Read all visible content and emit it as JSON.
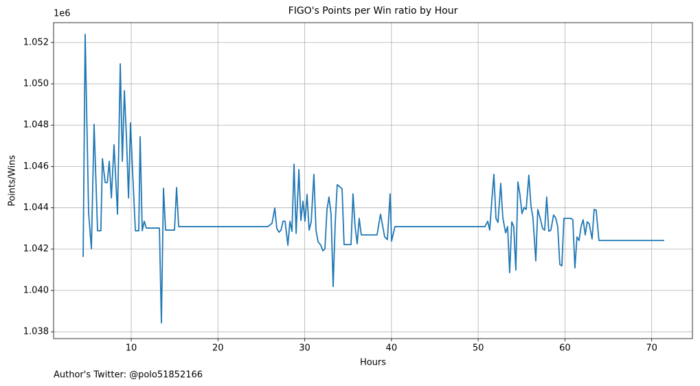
{
  "chart_data": {
    "type": "line",
    "title": "FIGO's Points per Win ratio by Hour",
    "x_label": "Hours",
    "y_label": "Points/Wins",
    "y_offset_label": "1e6",
    "footnote": "Author's Twitter: @polo51852166",
    "grid": true,
    "xlim": [
      1.05,
      74.7
    ],
    "ylim": [
      1.03767,
      1.05296
    ],
    "xticks": [
      10,
      20,
      30,
      40,
      50,
      60,
      70
    ],
    "yticks": [
      1.038,
      {
        "value": 1.04,
        "label": "1.040"
      },
      1.042,
      1.044,
      1.046,
      1.048,
      {
        "value": 1.05,
        "label": "1.050"
      },
      1.052
    ],
    "series": [
      {
        "color": "#1f77b4",
        "x": [
          4.46,
          4.69,
          5.09,
          5.41,
          5.72,
          6.12,
          6.5,
          6.68,
          7.0,
          7.24,
          7.47,
          7.71,
          8.02,
          8.42,
          8.74,
          8.98,
          9.21,
          9.45,
          9.69,
          9.92,
          10.16,
          10.48,
          10.87,
          11.03,
          11.27,
          11.5,
          11.74,
          13.25,
          13.48,
          13.72,
          13.96,
          14.99,
          15.23,
          15.47,
          25.76,
          26.23,
          26.55,
          26.79,
          27.03,
          27.27,
          27.5,
          27.74,
          28.06,
          28.3,
          28.53,
          28.77,
          29.01,
          29.33,
          29.56,
          29.8,
          30.03,
          30.27,
          30.51,
          30.75,
          31.06,
          31.3,
          31.54,
          31.86,
          32.09,
          32.33,
          32.57,
          32.8,
          33.04,
          33.28,
          33.52,
          33.75,
          34.31,
          34.54,
          35.34,
          35.57,
          35.81,
          36.05,
          36.28,
          36.52,
          38.34,
          38.74,
          39.22,
          39.53,
          39.85,
          40.01,
          40.41,
          50.78,
          51.1,
          51.33,
          51.57,
          51.81,
          52.05,
          52.28,
          52.6,
          52.84,
          53.16,
          53.39,
          53.63,
          53.87,
          54.1,
          54.34,
          54.58,
          54.81,
          55.05,
          55.29,
          55.53,
          55.84,
          56.08,
          56.32,
          56.64,
          56.87,
          57.19,
          57.43,
          57.66,
          57.9,
          58.14,
          58.38,
          58.69,
          58.93,
          59.17,
          59.41,
          59.65,
          59.88,
          60.68,
          60.91,
          61.15,
          61.39,
          61.63,
          61.86,
          62.1,
          62.34,
          62.57,
          62.81,
          63.13,
          63.37,
          63.6,
          63.92,
          71.44
        ],
        "values": [
          1.04162,
          1.0524,
          1.04375,
          1.04202,
          1.04804,
          1.04289,
          1.04289,
          1.04638,
          1.04522,
          1.04522,
          1.04625,
          1.04448,
          1.04705,
          1.04369,
          1.05097,
          1.04625,
          1.04967,
          1.04741,
          1.04448,
          1.04811,
          1.04575,
          1.04289,
          1.04289,
          1.04744,
          1.04289,
          1.04335,
          1.04302,
          1.04302,
          1.03843,
          1.04495,
          1.04292,
          1.04292,
          1.04498,
          1.04309,
          1.04309,
          1.04325,
          1.04399,
          1.04299,
          1.04282,
          1.04292,
          1.04335,
          1.04335,
          1.04219,
          1.04335,
          1.04286,
          1.04611,
          1.04276,
          1.04585,
          1.04339,
          1.04432,
          1.04335,
          1.04465,
          1.04292,
          1.04332,
          1.04562,
          1.04292,
          1.04236,
          1.04219,
          1.04192,
          1.04202,
          1.04392,
          1.04452,
          1.04369,
          1.04019,
          1.04329,
          1.04512,
          1.04492,
          1.04222,
          1.04222,
          1.04468,
          1.04309,
          1.04226,
          1.04349,
          1.04269,
          1.04269,
          1.04369,
          1.04259,
          1.04246,
          1.04468,
          1.04239,
          1.04309,
          1.04309,
          1.04335,
          1.04292,
          1.04435,
          1.04562,
          1.04349,
          1.04329,
          1.04518,
          1.04352,
          1.04279,
          1.04309,
          1.04086,
          1.04332,
          1.04309,
          1.04099,
          1.04525,
          1.04465,
          1.04372,
          1.04402,
          1.04392,
          1.04558,
          1.04412,
          1.04349,
          1.04143,
          1.04392,
          1.04342,
          1.04299,
          1.04292,
          1.04452,
          1.04286,
          1.04292,
          1.04365,
          1.04352,
          1.04309,
          1.04126,
          1.04119,
          1.04349,
          1.04349,
          1.04342,
          1.04109,
          1.04259,
          1.04242,
          1.04309,
          1.04342,
          1.04269,
          1.04332,
          1.04322,
          1.04249,
          1.04392,
          1.04389,
          1.04242,
          1.04242
        ]
      }
    ]
  }
}
